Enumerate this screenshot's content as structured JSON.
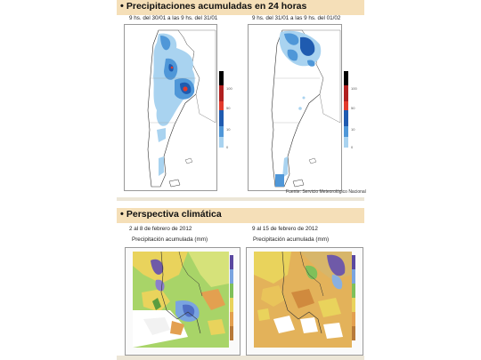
{
  "section1": {
    "title": "Precipitaciones acumuladas en 24 horas",
    "left_subtitle": "9 hs. del 30/01 a las 9 hs. del 31/01",
    "right_subtitle": "9 hs. del 31/01 a las 9 hs. del 01/02",
    "legend_ticks": [
      "100",
      "50",
      "10",
      "0"
    ],
    "source": "Fuente: Servicio Meteorológico Nacional"
  },
  "section2": {
    "title": "Perspectiva climática",
    "left_subtitle": "2 al 8 de febrero de 2012",
    "right_subtitle": "9 al 15 de febrero de 2012",
    "left_caption": "Precipitación acumulada (mm)",
    "right_caption": "Precipitación acumulada (mm)"
  },
  "colors": {
    "band": "#f5dfb8",
    "light_blue": "#a9d3f0",
    "mid_blue": "#4f97d8",
    "dark_blue": "#1f5bb0",
    "red": "#e23a2c",
    "green": "#7fc05a",
    "yellow": "#e9d35c",
    "orange": "#e3a050",
    "purple": "#6f5aa8"
  }
}
